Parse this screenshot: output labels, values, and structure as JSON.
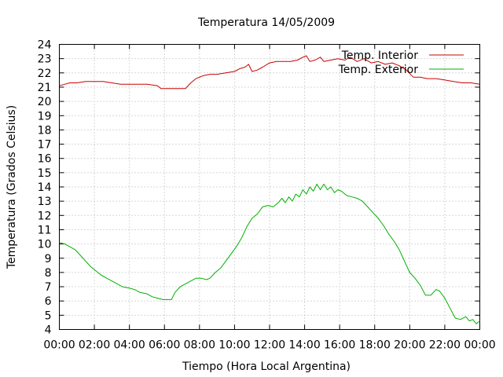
{
  "chart_data": {
    "type": "line",
    "title": "Temperatura 14/05/2009",
    "xlabel": "Tiempo (Hora Local Argentina)",
    "ylabel": "Temperatura (Grados Celsius)",
    "x_unit": "hours",
    "xlim": [
      0,
      24
    ],
    "ylim": [
      4,
      24
    ],
    "xticks": [
      0,
      2,
      4,
      6,
      8,
      10,
      12,
      14,
      16,
      18,
      20,
      22,
      24
    ],
    "xtick_labels": [
      "00:00",
      "02:00",
      "04:00",
      "06:00",
      "08:00",
      "10:00",
      "12:00",
      "14:00",
      "16:00",
      "18:00",
      "20:00",
      "22:00",
      "00:00"
    ],
    "yticks": [
      4,
      5,
      6,
      7,
      8,
      9,
      10,
      11,
      12,
      13,
      14,
      15,
      16,
      17,
      18,
      19,
      20,
      21,
      22,
      23,
      24
    ],
    "grid": true,
    "legend_position": "top-right",
    "series": [
      {
        "name": "Temp. Interior",
        "color": "#cc0000",
        "points": [
          [
            0,
            21.1
          ],
          [
            0.3,
            21.2
          ],
          [
            0.6,
            21.3
          ],
          [
            1,
            21.3
          ],
          [
            1.5,
            21.4
          ],
          [
            2,
            21.4
          ],
          [
            2.5,
            21.4
          ],
          [
            3,
            21.3
          ],
          [
            3.5,
            21.2
          ],
          [
            4,
            21.2
          ],
          [
            4.5,
            21.2
          ],
          [
            5,
            21.2
          ],
          [
            5.6,
            21.1
          ],
          [
            5.8,
            20.9
          ],
          [
            6.2,
            20.9
          ],
          [
            6.8,
            20.9
          ],
          [
            7.2,
            20.9
          ],
          [
            7.5,
            21.3
          ],
          [
            7.8,
            21.6
          ],
          [
            8.2,
            21.8
          ],
          [
            8.6,
            21.9
          ],
          [
            9,
            21.9
          ],
          [
            9.5,
            22.0
          ],
          [
            10,
            22.1
          ],
          [
            10.3,
            22.3
          ],
          [
            10.6,
            22.4
          ],
          [
            10.8,
            22.6
          ],
          [
            11.0,
            22.1
          ],
          [
            11.3,
            22.2
          ],
          [
            11.6,
            22.4
          ],
          [
            12,
            22.7
          ],
          [
            12.4,
            22.8
          ],
          [
            12.8,
            22.8
          ],
          [
            13.2,
            22.8
          ],
          [
            13.6,
            22.9
          ],
          [
            13.9,
            23.1
          ],
          [
            14.1,
            23.2
          ],
          [
            14.3,
            22.8
          ],
          [
            14.6,
            22.9
          ],
          [
            14.9,
            23.1
          ],
          [
            15.1,
            22.8
          ],
          [
            15.5,
            22.9
          ],
          [
            15.9,
            23.0
          ],
          [
            16.3,
            22.9
          ],
          [
            16.6,
            23.1
          ],
          [
            17,
            22.8
          ],
          [
            17.4,
            23.0
          ],
          [
            17.8,
            22.7
          ],
          [
            18.2,
            22.8
          ],
          [
            18.6,
            22.6
          ],
          [
            19,
            22.7
          ],
          [
            19.4,
            22.5
          ],
          [
            19.8,
            22.2
          ],
          [
            20.2,
            21.7
          ],
          [
            20.6,
            21.7
          ],
          [
            21,
            21.6
          ],
          [
            21.5,
            21.6
          ],
          [
            22,
            21.5
          ],
          [
            22.5,
            21.4
          ],
          [
            23,
            21.3
          ],
          [
            23.5,
            21.3
          ],
          [
            24,
            21.2
          ]
        ]
      },
      {
        "name": "Temp. Exterior",
        "color": "#00b000",
        "points": [
          [
            0,
            10.1
          ],
          [
            0.3,
            10.0
          ],
          [
            0.6,
            9.8
          ],
          [
            0.9,
            9.6
          ],
          [
            1.2,
            9.2
          ],
          [
            1.5,
            8.8
          ],
          [
            1.8,
            8.4
          ],
          [
            2.1,
            8.1
          ],
          [
            2.4,
            7.8
          ],
          [
            2.7,
            7.6
          ],
          [
            3,
            7.4
          ],
          [
            3.3,
            7.2
          ],
          [
            3.6,
            7.0
          ],
          [
            4,
            6.9
          ],
          [
            4.3,
            6.8
          ],
          [
            4.6,
            6.6
          ],
          [
            5,
            6.5
          ],
          [
            5.3,
            6.3
          ],
          [
            5.6,
            6.2
          ],
          [
            5.9,
            6.1
          ],
          [
            6.2,
            6.1
          ],
          [
            6.4,
            6.1
          ],
          [
            6.6,
            6.6
          ],
          [
            6.9,
            7.0
          ],
          [
            7.2,
            7.2
          ],
          [
            7.5,
            7.4
          ],
          [
            7.8,
            7.6
          ],
          [
            8.1,
            7.6
          ],
          [
            8.4,
            7.5
          ],
          [
            8.6,
            7.6
          ],
          [
            8.9,
            8.0
          ],
          [
            9.2,
            8.3
          ],
          [
            9.5,
            8.8
          ],
          [
            9.8,
            9.3
          ],
          [
            10.1,
            9.8
          ],
          [
            10.4,
            10.4
          ],
          [
            10.7,
            11.2
          ],
          [
            11.0,
            11.8
          ],
          [
            11.3,
            12.1
          ],
          [
            11.6,
            12.6
          ],
          [
            11.9,
            12.7
          ],
          [
            12.2,
            12.6
          ],
          [
            12.5,
            12.9
          ],
          [
            12.7,
            13.2
          ],
          [
            12.9,
            12.9
          ],
          [
            13.1,
            13.3
          ],
          [
            13.3,
            13.0
          ],
          [
            13.5,
            13.5
          ],
          [
            13.7,
            13.3
          ],
          [
            13.9,
            13.8
          ],
          [
            14.1,
            13.5
          ],
          [
            14.3,
            14.0
          ],
          [
            14.5,
            13.7
          ],
          [
            14.7,
            14.2
          ],
          [
            14.9,
            13.8
          ],
          [
            15.1,
            14.2
          ],
          [
            15.3,
            13.8
          ],
          [
            15.5,
            14.0
          ],
          [
            15.7,
            13.6
          ],
          [
            15.9,
            13.8
          ],
          [
            16.1,
            13.7
          ],
          [
            16.4,
            13.4
          ],
          [
            16.7,
            13.3
          ],
          [
            17,
            13.2
          ],
          [
            17.3,
            13.0
          ],
          [
            17.6,
            12.6
          ],
          [
            17.9,
            12.2
          ],
          [
            18.2,
            11.8
          ],
          [
            18.5,
            11.3
          ],
          [
            18.8,
            10.7
          ],
          [
            19.1,
            10.2
          ],
          [
            19.4,
            9.6
          ],
          [
            19.7,
            8.8
          ],
          [
            20,
            8.0
          ],
          [
            20.3,
            7.6
          ],
          [
            20.6,
            7.1
          ],
          [
            20.9,
            6.4
          ],
          [
            21.2,
            6.4
          ],
          [
            21.5,
            6.8
          ],
          [
            21.7,
            6.7
          ],
          [
            22,
            6.2
          ],
          [
            22.3,
            5.5
          ],
          [
            22.6,
            4.8
          ],
          [
            22.9,
            4.7
          ],
          [
            23.2,
            4.9
          ],
          [
            23.4,
            4.6
          ],
          [
            23.6,
            4.7
          ],
          [
            23.8,
            4.4
          ],
          [
            24,
            4.6
          ]
        ]
      }
    ]
  }
}
